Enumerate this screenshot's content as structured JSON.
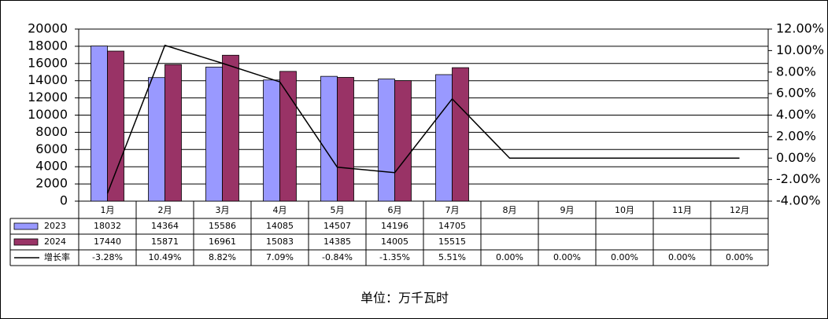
{
  "chart_data": {
    "type": "bar",
    "categories": [
      "1月",
      "2月",
      "3月",
      "4月",
      "5月",
      "6月",
      "7月",
      "8月",
      "9月",
      "10月",
      "11月",
      "12月"
    ],
    "series": [
      {
        "name": "2023",
        "color": "#9999ff",
        "values": [
          18032,
          14364,
          15586,
          14085,
          14507,
          14196,
          14705,
          null,
          null,
          null,
          null,
          null
        ]
      },
      {
        "name": "2024",
        "color": "#993366",
        "values": [
          17440,
          15871,
          16961,
          15083,
          14385,
          14005,
          15515,
          null,
          null,
          null,
          null,
          null
        ]
      },
      {
        "name": "增长率",
        "type": "line",
        "axis": "y2",
        "color": "#000000",
        "values": [
          -3.28,
          10.49,
          8.82,
          7.09,
          -0.84,
          -1.35,
          5.51,
          0,
          0,
          0,
          0,
          0
        ],
        "value_labels": [
          "-3.28%",
          "10.49%",
          "8.82%",
          "7.09%",
          "-0.84%",
          "-1.35%",
          "5.51%",
          "0.00%",
          "0.00%",
          "0.00%",
          "0.00%",
          "0.00%"
        ]
      }
    ],
    "ylim": [
      0,
      20000
    ],
    "yticks": [
      0,
      2000,
      4000,
      6000,
      8000,
      10000,
      12000,
      14000,
      16000,
      18000,
      20000
    ],
    "y2lim": [
      -4,
      12
    ],
    "y2ticks": [
      {
        "value": -4,
        "label": "-4.00%"
      },
      {
        "value": -2,
        "label": "-2.00%"
      },
      {
        "value": 0,
        "label": "0.00%"
      },
      {
        "value": 2,
        "label": "2.00%"
      },
      {
        "value": 4,
        "label": "4.00%"
      },
      {
        "value": 6,
        "label": "6.00%"
      },
      {
        "value": 8,
        "label": "8.00%"
      },
      {
        "value": 10,
        "label": "10.00%"
      },
      {
        "value": 12,
        "label": "12.00%"
      }
    ],
    "grid": true,
    "unit_note": "单位：万千瓦时"
  }
}
